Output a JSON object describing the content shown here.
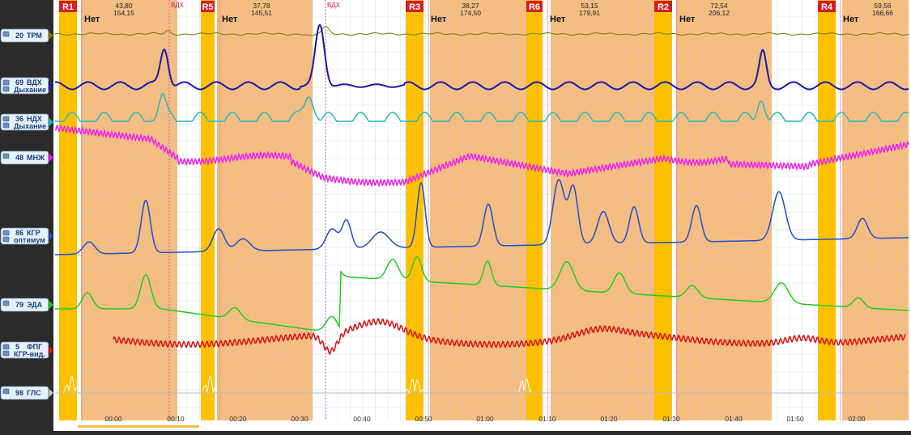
{
  "colors": {
    "background": "#2b2b2b",
    "chart_bg": "#ffffff",
    "question_zone": "#f5b26b",
    "question_marker": "#ffc000",
    "label_chip": "#e6f1fb",
    "grid": "#aac8e4"
  },
  "channels": [
    {
      "id": "trm",
      "number": "20",
      "name": "ТРМ",
      "sub": "",
      "color": "#7a7a00"
    },
    {
      "id": "vdh",
      "number": "69",
      "name": "ВДХ",
      "sub": "Дыхание",
      "color": "#1a1aa8"
    },
    {
      "id": "ndh",
      "number": "36",
      "name": "НДХ",
      "sub": "Дыхание",
      "color": "#2bb8b8"
    },
    {
      "id": "mnzh",
      "number": "48",
      "name": "МНЖ",
      "sub": "",
      "color": "#ee22ee"
    },
    {
      "id": "kgr",
      "number": "86",
      "name": "КГР",
      "sub": "оптимум",
      "color": "#1f4fcc"
    },
    {
      "id": "eda",
      "number": "79",
      "name": "ЭДА",
      "sub": "",
      "color": "#22cc22"
    },
    {
      "id": "fpg",
      "number": "5",
      "name": "ФПГ",
      "sub": "КГР-вид.",
      "color": "#dd1111"
    },
    {
      "id": "gls",
      "number": "98",
      "name": "ГЛС",
      "sub": "",
      "color": "#c8c8c8"
    }
  ],
  "questions": [
    {
      "label": "R1",
      "answer": "Нет",
      "value_top": "43,80",
      "value_bottom": "154,15"
    },
    {
      "label": "R5",
      "answer": "Нет",
      "value_top": "37,78",
      "value_bottom": "145,51"
    },
    {
      "label": "R3",
      "answer": "Нет",
      "value_top": "38,27",
      "value_bottom": "174,50"
    },
    {
      "label": "R6",
      "answer": "Нет",
      "value_top": "53,15",
      "value_bottom": "179,91"
    },
    {
      "label": "R2",
      "answer": "Нет",
      "value_top": "72,54",
      "value_bottom": "206,12"
    },
    {
      "label": "R4",
      "answer": "Нет",
      "value_top": "59,56",
      "value_bottom": "166,66"
    }
  ],
  "breath_markers": [
    "ВДХ",
    "ВДХ"
  ],
  "time_labels": [
    "00:00",
    "00:10",
    "00:20",
    "00:30",
    "00:40",
    "00:50",
    "01:00",
    "01:10",
    "01:20",
    "01:30",
    "01:40",
    "01:50",
    "02:00"
  ]
}
